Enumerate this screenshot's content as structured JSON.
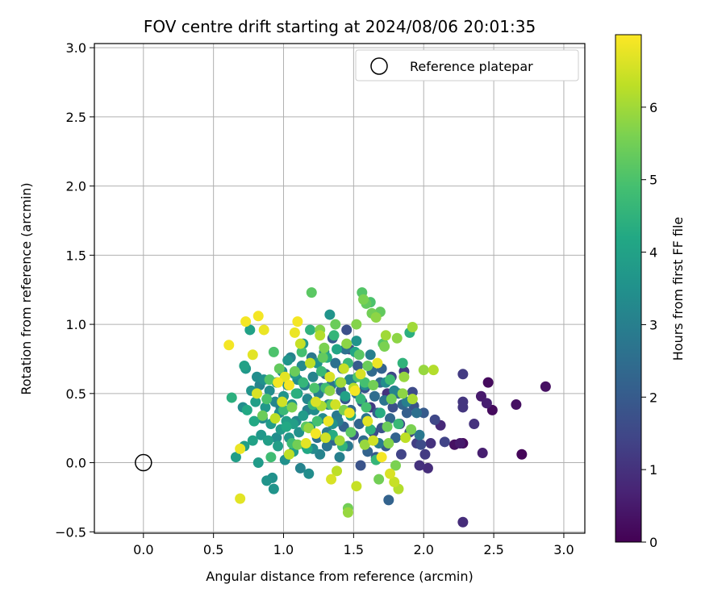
{
  "chart_data": {
    "type": "scatter",
    "title": "FOV centre drift starting at 2024/08/06 20:01:35",
    "xlabel": "Angular distance from reference (arcmin)",
    "ylabel": "Rotation from reference (arcmin)",
    "xlim": [
      -0.35,
      3.15
    ],
    "ylim": [
      -0.51,
      3.03
    ],
    "xticks": [
      "0.0",
      "0.5",
      "1.0",
      "1.5",
      "2.0",
      "2.5",
      "3.0"
    ],
    "yticks": [
      "−0.5",
      "0.0",
      "0.5",
      "1.0",
      "1.5",
      "2.0",
      "2.5",
      "3.0"
    ],
    "grid": true,
    "legend": {
      "position": "top-right",
      "entries": [
        "Reference platepar"
      ]
    },
    "reference_point": {
      "x": 0.0,
      "y": 0.0
    },
    "colorbar": {
      "label": "Hours from first FF file",
      "range": [
        0,
        7.0
      ],
      "ticks": [
        "0",
        "1",
        "2",
        "3",
        "4",
        "5",
        "6"
      ],
      "colormap": "viridis"
    },
    "points": [
      [
        2.87,
        0.55,
        0.3
      ],
      [
        2.7,
        0.06,
        0.1
      ],
      [
        2.66,
        0.42,
        0.3
      ],
      [
        2.49,
        0.38,
        0.2
      ],
      [
        2.46,
        0.58,
        0.2
      ],
      [
        2.45,
        0.43,
        0.6
      ],
      [
        2.41,
        0.48,
        0.5
      ],
      [
        2.42,
        0.07,
        0.6
      ],
      [
        2.36,
        0.28,
        1.0
      ],
      [
        2.28,
        0.64,
        1.2
      ],
      [
        2.28,
        0.44,
        1.1
      ],
      [
        2.28,
        0.4,
        1.1
      ],
      [
        2.28,
        -0.43,
        0.9
      ],
      [
        2.26,
        0.14,
        0.5
      ],
      [
        2.28,
        0.14,
        0.2
      ],
      [
        2.22,
        0.13,
        0.3
      ],
      [
        2.15,
        0.15,
        1.4
      ],
      [
        2.12,
        0.27,
        0.8
      ],
      [
        2.08,
        0.31,
        1.5
      ],
      [
        2.05,
        0.14,
        1.0
      ],
      [
        2.03,
        -0.04,
        0.9
      ],
      [
        2.01,
        0.06,
        1.2
      ],
      [
        2.0,
        0.36,
        2.0
      ],
      [
        1.98,
        0.13,
        1.6
      ],
      [
        1.97,
        -0.02,
        1.0
      ],
      [
        1.95,
        0.14,
        1.3
      ],
      [
        1.93,
        0.41,
        1.8
      ],
      [
        1.92,
        0.51,
        1.6
      ],
      [
        1.9,
        0.22,
        1.5
      ],
      [
        1.88,
        0.36,
        2.1
      ],
      [
        1.86,
        0.66,
        1.2
      ],
      [
        1.85,
        0.42,
        2.3
      ],
      [
        1.84,
        0.06,
        1.4
      ],
      [
        1.83,
        0.28,
        1.6
      ],
      [
        1.82,
        0.5,
        2.5
      ],
      [
        1.8,
        0.18,
        2.2
      ],
      [
        1.78,
        0.4,
        1.7
      ],
      [
        1.77,
        0.62,
        1.5
      ],
      [
        1.76,
        0.32,
        2.3
      ],
      [
        1.75,
        -0.27,
        2.2
      ],
      [
        1.74,
        0.5,
        1.0
      ],
      [
        1.73,
        0.12,
        2.0
      ],
      [
        1.72,
        0.45,
        2.7
      ],
      [
        1.7,
        0.25,
        1.8
      ],
      [
        1.69,
        0.58,
        2.4
      ],
      [
        1.68,
        0.14,
        2.9
      ],
      [
        1.67,
        0.36,
        2.1
      ],
      [
        1.66,
        0.04,
        1.9
      ],
      [
        1.65,
        0.48,
        2.5
      ],
      [
        1.64,
        0.22,
        1.6
      ],
      [
        1.63,
        0.66,
        2.4
      ],
      [
        1.62,
        0.4,
        1.2
      ],
      [
        1.6,
        0.08,
        2.2
      ],
      [
        1.59,
        0.32,
        2.7
      ],
      [
        1.58,
        0.54,
        1.8
      ],
      [
        1.57,
        0.16,
        2.5
      ],
      [
        1.56,
        0.44,
        2.0
      ],
      [
        1.55,
        -0.02,
        1.8
      ],
      [
        1.54,
        0.28,
        2.3
      ],
      [
        1.53,
        0.7,
        2.0
      ],
      [
        1.52,
        0.5,
        2.6
      ],
      [
        1.5,
        0.2,
        1.7
      ],
      [
        1.49,
        0.6,
        2.9
      ],
      [
        1.48,
        0.38,
        2.4
      ],
      [
        1.47,
        0.82,
        1.6
      ],
      [
        1.46,
        0.12,
        2.8
      ],
      [
        1.45,
        0.96,
        1.7
      ],
      [
        1.44,
        0.46,
        1.9
      ],
      [
        1.43,
        0.26,
        2.2
      ],
      [
        1.42,
        0.68,
        2.5
      ],
      [
        1.41,
        0.52,
        2.1
      ],
      [
        1.4,
        0.04,
        3.0
      ],
      [
        1.38,
        0.34,
        2.8
      ],
      [
        1.37,
        0.72,
        2.6
      ],
      [
        1.36,
        0.16,
        2.3
      ],
      [
        1.35,
        0.9,
        2.0
      ],
      [
        1.34,
        0.56,
        2.7
      ],
      [
        1.33,
        1.07,
        3.6
      ],
      [
        1.32,
        0.42,
        3.1
      ],
      [
        1.31,
        0.22,
        2.9
      ],
      [
        1.3,
        0.64,
        2.4
      ],
      [
        1.29,
        0.8,
        3.2
      ],
      [
        1.28,
        0.32,
        3.3
      ],
      [
        1.26,
        0.06,
        3.1
      ],
      [
        1.25,
        0.5,
        3.0
      ],
      [
        1.24,
        0.18,
        2.6
      ],
      [
        1.22,
        0.38,
        3.4
      ],
      [
        1.21,
        0.62,
        3.1
      ],
      [
        1.2,
        0.76,
        2.8
      ],
      [
        1.19,
        0.26,
        3.6
      ],
      [
        1.18,
        -0.08,
        3.4
      ],
      [
        1.17,
        0.46,
        3.2
      ],
      [
        1.16,
        0.12,
        3.6
      ],
      [
        1.15,
        0.56,
        3.0
      ],
      [
        1.14,
        0.34,
        3.8
      ],
      [
        1.13,
        0.7,
        3.3
      ],
      [
        1.12,
        -0.04,
        3.1
      ],
      [
        1.11,
        0.22,
        3.5
      ],
      [
        1.1,
        0.5,
        3.8
      ],
      [
        1.09,
        0.3,
        3.2
      ],
      [
        1.08,
        0.64,
        3.7
      ],
      [
        1.07,
        0.08,
        3.9
      ],
      [
        1.06,
        0.42,
        3.5
      ],
      [
        1.05,
        0.76,
        3.1
      ],
      [
        1.04,
        0.18,
        3.7
      ],
      [
        1.03,
        0.56,
        3.4
      ],
      [
        1.02,
        0.3,
        3.9
      ],
      [
        1.01,
        0.02,
        3.5
      ],
      [
        1.0,
        0.48,
        3.6
      ],
      [
        0.99,
        0.66,
        3.3
      ],
      [
        0.98,
        0.24,
        3.8
      ],
      [
        0.97,
        0.36,
        3.4
      ],
      [
        0.96,
        0.12,
        3.9
      ],
      [
        0.95,
        0.58,
        3.6
      ],
      [
        0.94,
        0.44,
        3.2
      ],
      [
        0.93,
        -0.19,
        3.6
      ],
      [
        0.92,
        -0.11,
        3.5
      ],
      [
        0.91,
        0.28,
        3.8
      ],
      [
        0.9,
        0.52,
        3.4
      ],
      [
        0.89,
        0.16,
        3.9
      ],
      [
        0.88,
        -0.13,
        3.6
      ],
      [
        0.87,
        0.4,
        3.7
      ],
      [
        0.86,
        0.6,
        3.5
      ],
      [
        0.85,
        0.32,
        3.3
      ],
      [
        0.84,
        0.2,
        3.7
      ],
      [
        0.83,
        0.56,
        3.1
      ],
      [
        0.82,
        0.0,
        3.8
      ],
      [
        0.81,
        0.62,
        3.4
      ],
      [
        0.8,
        0.44,
        3.9
      ],
      [
        0.79,
        0.3,
        4.2
      ],
      [
        0.78,
        0.16,
        4.0
      ],
      [
        0.77,
        0.52,
        3.6
      ],
      [
        0.76,
        0.96,
        4.0
      ],
      [
        0.74,
        0.38,
        4.2
      ],
      [
        0.73,
        0.68,
        3.7
      ],
      [
        0.72,
        0.12,
        3.9
      ],
      [
        0.72,
        0.7,
        4.0
      ],
      [
        0.71,
        0.4,
        3.4
      ],
      [
        0.66,
        0.04,
        3.9
      ],
      [
        0.63,
        0.47,
        4.4
      ],
      [
        1.38,
        0.82,
        4.1
      ],
      [
        1.14,
        0.58,
        4.6
      ],
      [
        1.19,
        0.96,
        4.5
      ],
      [
        1.09,
        0.5,
        4.4
      ],
      [
        1.31,
        0.76,
        4.3
      ],
      [
        1.02,
        0.26,
        4.2
      ],
      [
        1.44,
        0.48,
        4.0
      ],
      [
        1.21,
        0.42,
        4.6
      ],
      [
        1.06,
        0.14,
        4.8
      ],
      [
        1.27,
        0.66,
        4.7
      ],
      [
        1.48,
        0.34,
        4.1
      ],
      [
        1.35,
        0.2,
        4.3
      ],
      [
        1.13,
        0.8,
        4.9
      ],
      [
        1.4,
        0.58,
        4.4
      ],
      [
        1.55,
        0.46,
        4.6
      ],
      [
        1.62,
        0.24,
        4.5
      ],
      [
        1.17,
        0.1,
        4.2
      ],
      [
        1.3,
        0.54,
        4.8
      ],
      [
        1.51,
        0.8,
        4.1
      ],
      [
        1.24,
        0.3,
        4.9
      ],
      [
        1.46,
        0.72,
        4.7
      ],
      [
        1.58,
        0.58,
        4.9
      ],
      [
        1.69,
        0.36,
        4.3
      ],
      [
        1.36,
        0.92,
        4.6
      ],
      [
        1.42,
        0.12,
        4.5
      ],
      [
        1.0,
        0.38,
        4.7
      ],
      [
        0.91,
        0.04,
        4.8
      ],
      [
        0.93,
        0.8,
        5.0
      ],
      [
        1.85,
        0.72,
        4.5
      ],
      [
        1.9,
        0.94,
        4.4
      ],
      [
        1.76,
        0.6,
        4.8
      ],
      [
        1.71,
        0.86,
        5.1
      ],
      [
        1.82,
        0.28,
        4.7
      ],
      [
        1.66,
        0.02,
        4.6
      ],
      [
        1.59,
        0.4,
        4.9
      ],
      [
        1.53,
        0.62,
        5.0
      ],
      [
        1.48,
        0.22,
        5.2
      ],
      [
        1.34,
        0.42,
        5.1
      ],
      [
        1.28,
        0.76,
        5.3
      ],
      [
        1.22,
        0.54,
        5.0
      ],
      [
        1.16,
        0.26,
        5.2
      ],
      [
        1.08,
        0.66,
        5.4
      ],
      [
        1.2,
        1.23,
        5.2
      ],
      [
        1.56,
        1.23,
        5.1
      ],
      [
        1.59,
        1.15,
        5.3
      ],
      [
        1.62,
        1.16,
        5.0
      ],
      [
        1.69,
        1.09,
        5.3
      ],
      [
        1.63,
        1.08,
        5.5
      ],
      [
        1.72,
        0.84,
        5.6
      ],
      [
        1.77,
        0.46,
        5.5
      ],
      [
        1.81,
        0.9,
        5.8
      ],
      [
        1.86,
        0.62,
        5.9
      ],
      [
        1.92,
        0.98,
        6.0
      ],
      [
        2.0,
        0.67,
        5.9
      ],
      [
        2.07,
        0.67,
        6.2
      ],
      [
        1.91,
        0.24,
        5.6
      ],
      [
        1.85,
        0.5,
        5.8
      ],
      [
        1.8,
        -0.02,
        5.6
      ],
      [
        1.74,
        0.26,
        5.4
      ],
      [
        1.68,
        -0.12,
        5.5
      ],
      [
        1.52,
        1.0,
        5.7
      ],
      [
        1.45,
        0.86,
        5.8
      ],
      [
        1.41,
        0.58,
        6.0
      ],
      [
        1.43,
        0.38,
        5.6
      ],
      [
        1.46,
        -0.33,
        5.5
      ],
      [
        1.46,
        -0.36,
        5.9
      ],
      [
        1.52,
        -0.17,
        6.4
      ],
      [
        1.38,
        -0.06,
        6.3
      ],
      [
        1.34,
        -0.12,
        6.6
      ],
      [
        1.3,
        0.18,
        6.5
      ],
      [
        1.26,
        0.92,
        6.2
      ],
      [
        1.23,
        0.44,
        6.6
      ],
      [
        1.19,
        0.72,
        6.3
      ],
      [
        1.12,
        0.86,
        6.4
      ],
      [
        1.08,
        0.94,
        6.8
      ],
      [
        1.04,
        0.56,
        6.9
      ],
      [
        1.01,
        0.62,
        6.7
      ],
      [
        0.99,
        0.44,
        6.5
      ],
      [
        0.96,
        0.58,
        6.9
      ],
      [
        0.94,
        0.32,
        6.3
      ],
      [
        0.86,
        0.96,
        6.8
      ],
      [
        0.82,
        1.06,
        6.9
      ],
      [
        0.78,
        0.78,
        6.7
      ],
      [
        0.81,
        0.5,
        6.6
      ],
      [
        0.73,
        1.02,
        6.9
      ],
      [
        0.69,
        0.1,
        6.8
      ],
      [
        0.69,
        -0.26,
        6.7
      ],
      [
        0.61,
        0.85,
        6.9
      ],
      [
        1.1,
        1.02,
        6.9
      ],
      [
        1.16,
        0.14,
        6.7
      ],
      [
        1.23,
        0.21,
        6.9
      ],
      [
        1.32,
        0.3,
        6.8
      ],
      [
        1.33,
        0.62,
        6.6
      ],
      [
        1.37,
        0.42,
        6.5
      ],
      [
        1.47,
        0.36,
        6.8
      ],
      [
        1.51,
        0.52,
        6.9
      ],
      [
        1.55,
        0.64,
        6.6
      ],
      [
        1.6,
        0.3,
        6.7
      ],
      [
        1.64,
        0.16,
        6.5
      ],
      [
        1.67,
        0.72,
        6.8
      ],
      [
        1.7,
        0.04,
        6.9
      ],
      [
        1.76,
        -0.08,
        6.6
      ],
      [
        1.79,
        -0.14,
        6.4
      ],
      [
        1.82,
        -0.19,
        6.2
      ],
      [
        1.87,
        0.18,
        6.3
      ],
      [
        1.92,
        0.46,
        6.1
      ],
      [
        1.73,
        0.92,
        6.0
      ],
      [
        1.66,
        1.05,
        5.8
      ],
      [
        1.57,
        1.18,
        5.6
      ],
      [
        1.37,
        1.0,
        5.4
      ],
      [
        1.29,
        0.83,
        5.6
      ],
      [
        1.26,
        0.96,
        5.7
      ],
      [
        1.1,
        0.13,
        5.5
      ],
      [
        1.18,
        0.25,
        5.9
      ],
      [
        1.27,
        0.41,
        6.1
      ],
      [
        1.04,
        0.06,
        6.3
      ],
      [
        1.54,
        0.78,
        5.2
      ],
      [
        1.6,
        0.7,
        5.4
      ],
      [
        1.64,
        0.56,
        5.5
      ],
      [
        1.75,
        0.14,
        5.7
      ],
      [
        1.58,
        0.13,
        5.9
      ],
      [
        1.5,
        0.54,
        6.2
      ],
      [
        1.43,
        0.68,
        6.4
      ],
      [
        1.4,
        0.16,
        6.0
      ],
      [
        1.33,
        0.52,
        5.8
      ],
      [
        1.06,
        0.4,
        5.6
      ],
      [
        0.97,
        0.68,
        5.3
      ],
      [
        0.9,
        0.6,
        5.1
      ],
      [
        0.88,
        0.46,
        5.0
      ],
      [
        0.85,
        0.34,
        5.4
      ],
      [
        1.88,
        0.44,
        3.0
      ],
      [
        1.95,
        0.36,
        2.6
      ],
      [
        1.97,
        0.2,
        2.8
      ],
      [
        1.79,
        0.52,
        3.1
      ],
      [
        1.73,
        0.58,
        3.4
      ],
      [
        1.7,
        0.68,
        2.2
      ],
      [
        1.62,
        0.78,
        3.0
      ],
      [
        1.58,
        0.56,
        3.3
      ],
      [
        1.52,
        0.88,
        3.6
      ],
      [
        1.47,
        0.6,
        3.2
      ],
      [
        1.44,
        0.82,
        2.6
      ],
      [
        1.39,
        0.3,
        2.9
      ],
      [
        1.35,
        0.28,
        3.5
      ],
      [
        1.31,
        0.12,
        2.7
      ],
      [
        1.27,
        0.54,
        2.5
      ],
      [
        1.24,
        0.72,
        3.6
      ],
      [
        1.21,
        0.1,
        3.3
      ],
      [
        1.17,
        0.38,
        3.0
      ],
      [
        1.14,
        0.86,
        3.7
      ],
      [
        1.1,
        0.6,
        3.4
      ],
      [
        1.07,
        0.28,
        3.9
      ],
      [
        1.03,
        0.74,
        3.6
      ],
      [
        0.98,
        0.4,
        3.0
      ],
      [
        0.95,
        0.18,
        3.4
      ]
    ]
  }
}
